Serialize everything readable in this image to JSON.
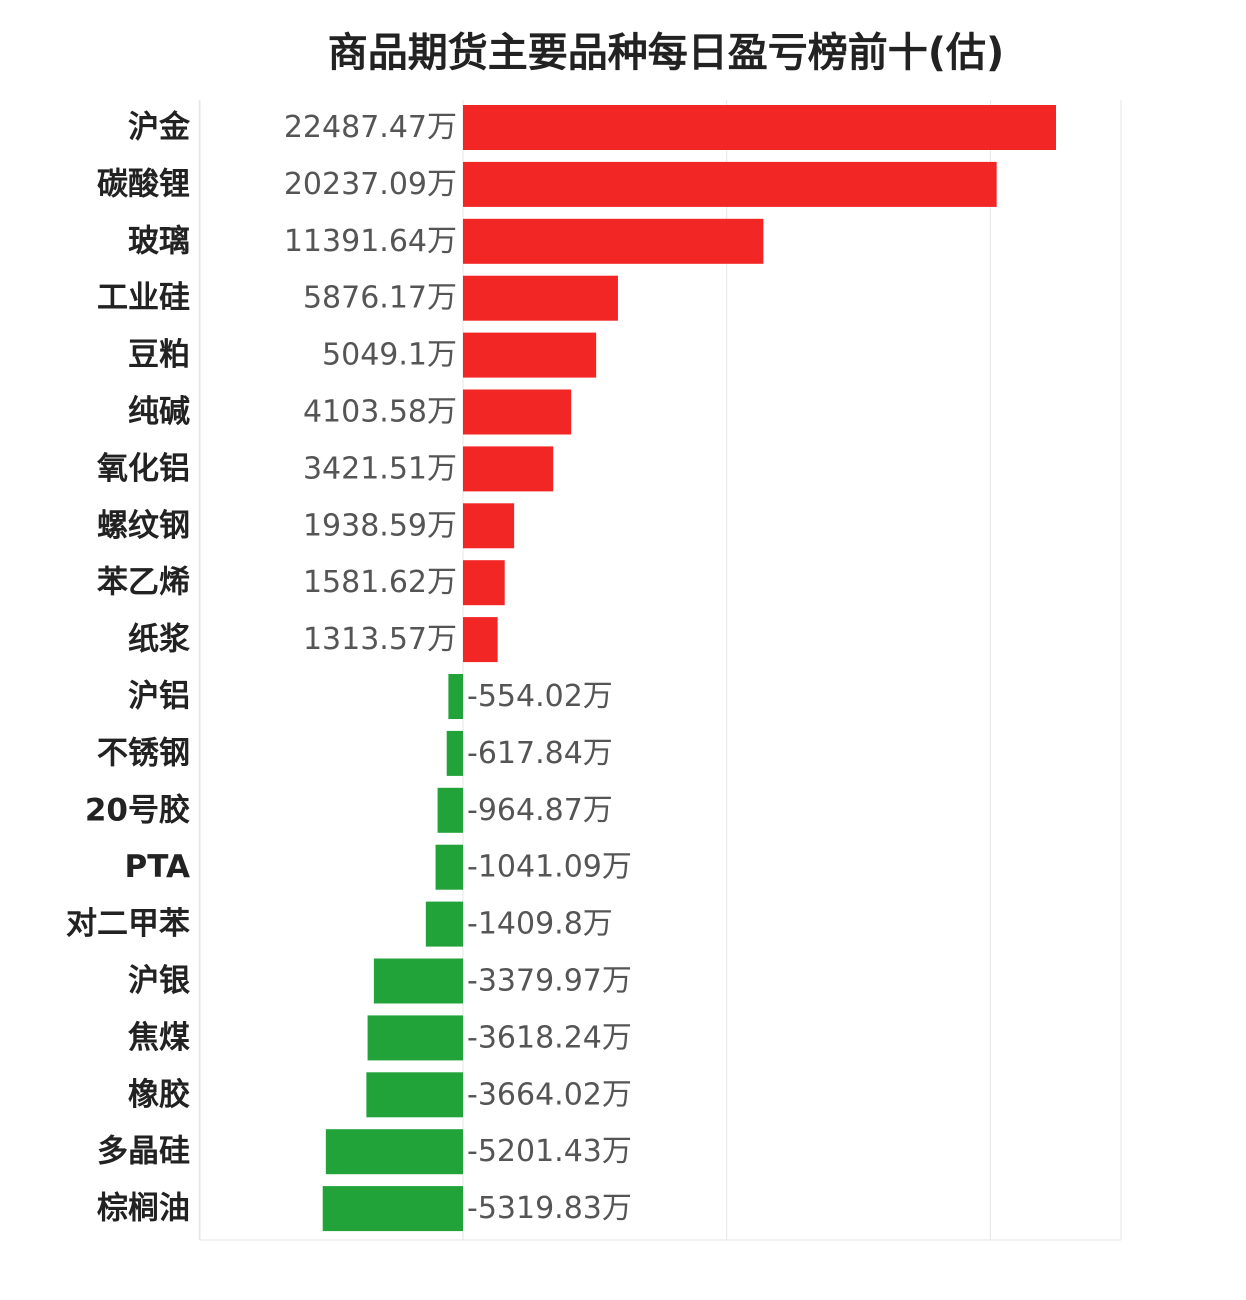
{
  "chart_data": {
    "type": "bar",
    "orientation": "horizontal",
    "title": "商品期货主要品种每日盈亏榜前十(估)",
    "unit_suffix": "万",
    "categories": [
      "沪金",
      "碳酸锂",
      "玻璃",
      "工业硅",
      "豆粕",
      "纯碱",
      "氧化铝",
      "螺纹钢",
      "苯乙烯",
      "纸浆",
      "沪铝",
      "不锈钢",
      "20号胶",
      "PTA",
      "对二甲苯",
      "沪银",
      "焦煤",
      "橡胶",
      "多晶硅",
      "棕榈油"
    ],
    "values": [
      22487.47,
      20237.09,
      11391.64,
      5876.17,
      5049.1,
      4103.58,
      3421.51,
      1938.59,
      1581.62,
      1313.57,
      -554.02,
      -617.84,
      -964.87,
      -1041.09,
      -1409.8,
      -3379.97,
      -3618.24,
      -3664.02,
      -5201.43,
      -5319.83
    ],
    "value_labels": [
      "22487.47万",
      "20237.09万",
      "11391.64万",
      "5876.17万",
      "5049.1万",
      "4103.58万",
      "3421.51万",
      "1938.59万",
      "1581.62万",
      "1313.57万",
      "-554.02万",
      "-617.84万",
      "-964.87万",
      "-1041.09万",
      "-1409.8万",
      "-3379.97万",
      "-3618.24万",
      "-3664.02万",
      "-5201.43万",
      "-5319.83万"
    ],
    "xlim": [
      -10000,
      25000
    ],
    "grid": true,
    "colors": {
      "positive": "#f32626",
      "negative": "#21a33a"
    }
  }
}
